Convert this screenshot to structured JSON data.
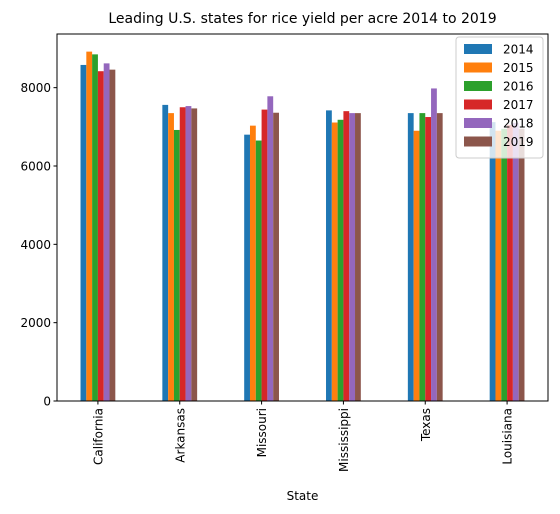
{
  "chart_data": {
    "type": "bar",
    "title": "Leading U.S. states for rice yield per acre 2014 to 2019",
    "xlabel": "State",
    "ylabel": "",
    "ylim": [
      0,
      9370
    ],
    "yticks": [
      0,
      2000,
      4000,
      6000,
      8000
    ],
    "categories": [
      "California",
      "Arkansas",
      "Missouri",
      "Mississippi",
      "Texas",
      "Louisiana"
    ],
    "legend_position": "top-right",
    "grid": false,
    "series": [
      {
        "name": "2014",
        "color": "#1f77b4",
        "values": [
          8580,
          7560,
          6800,
          7420,
          7350,
          7120
        ]
      },
      {
        "name": "2015",
        "color": "#ff7f0e",
        "values": [
          8920,
          7350,
          7030,
          7110,
          6900,
          6900
        ]
      },
      {
        "name": "2016",
        "color": "#2ca02c",
        "values": [
          8850,
          6920,
          6650,
          7180,
          7350,
          6950
        ]
      },
      {
        "name": "2017",
        "color": "#d62728",
        "values": [
          8420,
          7500,
          7440,
          7400,
          7250,
          7050
        ]
      },
      {
        "name": "2018",
        "color": "#9467bd",
        "values": [
          8620,
          7530,
          7780,
          7350,
          7980,
          7100
        ]
      },
      {
        "name": "2019",
        "color": "#8c564b",
        "values": [
          8460,
          7470,
          7360,
          7350,
          7350,
          6950
        ]
      }
    ]
  }
}
